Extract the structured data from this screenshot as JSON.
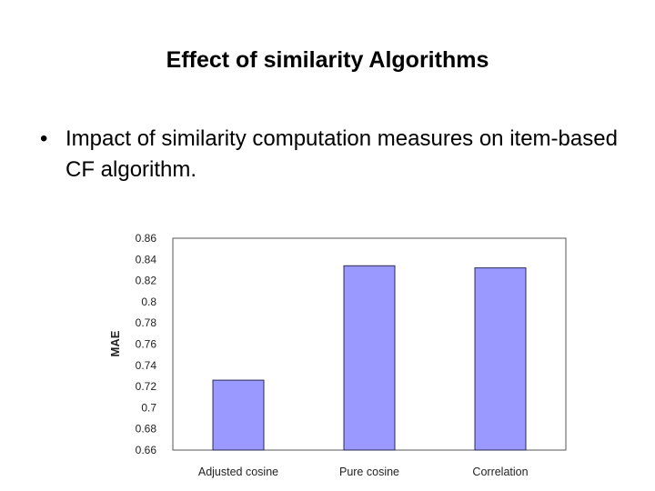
{
  "slide": {
    "title": "Effect of similarity Algorithms",
    "bullet": "Impact of similarity computation measures on item-based CF algorithm."
  },
  "chart_data": {
    "type": "bar",
    "categories": [
      "Adjusted cosine",
      "Pure cosine",
      "Correlation"
    ],
    "values": [
      0.726,
      0.834,
      0.832
    ],
    "title": "",
    "xlabel": "",
    "ylabel": "MAE",
    "ylim": [
      0.66,
      0.86
    ],
    "yticks": [
      "0.86",
      "0.84",
      "0.82",
      "0.8",
      "0.78",
      "0.76",
      "0.74",
      "0.72",
      "0.7",
      "0.68",
      "0.66"
    ],
    "grid": false,
    "legend": "none",
    "colors": {
      "bar_fill": "#9999ff",
      "bar_stroke": "#2a2a55",
      "plot_border": "#555555"
    }
  }
}
